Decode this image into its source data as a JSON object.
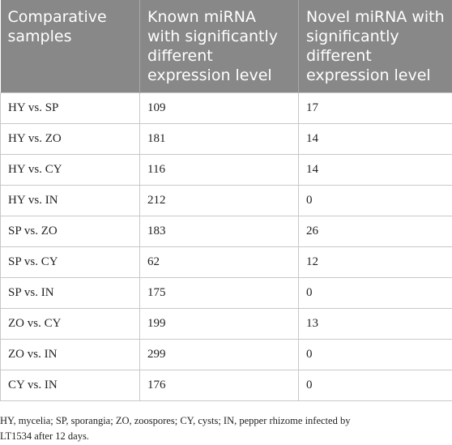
{
  "table": {
    "headers": [
      [
        "Comparative",
        "samples"
      ],
      [
        "Known miRNA",
        "with significantly",
        "different",
        "expression level"
      ],
      [
        "Novel miRNA with",
        "significantly",
        "different",
        "expression level"
      ]
    ],
    "rows": [
      [
        "HY vs. SP",
        "109",
        "17"
      ],
      [
        "HY vs. ZO",
        "181",
        "14"
      ],
      [
        "HY vs. CY",
        "116",
        "14"
      ],
      [
        "HY vs. IN",
        "212",
        "0"
      ],
      [
        "SP vs. ZO",
        "183",
        "26"
      ],
      [
        "SP vs. CY",
        "62",
        "12"
      ],
      [
        "SP vs. IN",
        "175",
        "0"
      ],
      [
        "ZO vs. CY",
        "199",
        "13"
      ],
      [
        "ZO vs. IN",
        "299",
        "0"
      ],
      [
        "CY vs. IN",
        "176",
        "0"
      ]
    ]
  },
  "footnote": {
    "lines": [
      "HY, mycelia; SP, sporangia; ZO, zoospores; CY, cysts; IN, pepper rhizome infected by",
      "LT1534 after 12 days."
    ]
  },
  "colors": {
    "header_bg": "#888888",
    "header_text": "#ffffff",
    "grid": "#c8c8c8"
  }
}
